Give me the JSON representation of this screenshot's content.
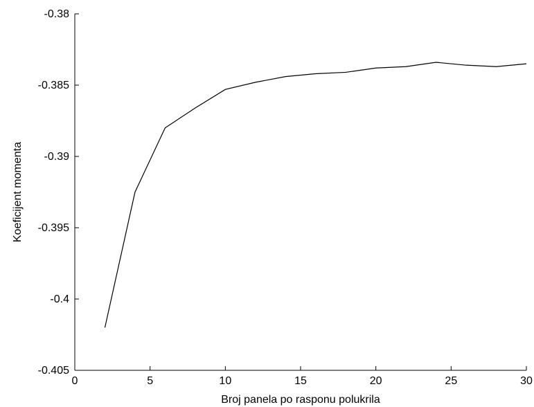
{
  "chart_data": {
    "type": "line",
    "title": "",
    "xlabel": "Broj panela po rasponu polukrila",
    "ylabel": "Koeficijent momenta",
    "xlim": [
      0,
      30
    ],
    "ylim": [
      -0.405,
      -0.38
    ],
    "x_ticks": [
      0,
      5,
      10,
      15,
      20,
      25,
      30
    ],
    "y_ticks": [
      -0.405,
      -0.4,
      -0.395,
      -0.39,
      -0.385,
      -0.38
    ],
    "x_tick_labels": [
      "0",
      "5",
      "10",
      "15",
      "20",
      "25",
      "30"
    ],
    "y_tick_labels": [
      "-0.405",
      "-0.4",
      "-0.395",
      "-0.39",
      "-0.385",
      "-0.38"
    ],
    "grid": false,
    "line_color": "#000000",
    "series": [
      {
        "x": [
          2,
          4,
          6,
          8,
          10,
          12,
          14,
          16,
          18,
          20,
          22,
          24,
          26,
          28,
          30
        ],
        "y": [
          -0.402,
          -0.3925,
          -0.388,
          -0.3866,
          -0.3853,
          -0.3848,
          -0.3844,
          -0.3842,
          -0.3841,
          -0.3838,
          -0.3837,
          -0.3834,
          -0.3836,
          -0.3837,
          -0.3835
        ]
      }
    ]
  }
}
